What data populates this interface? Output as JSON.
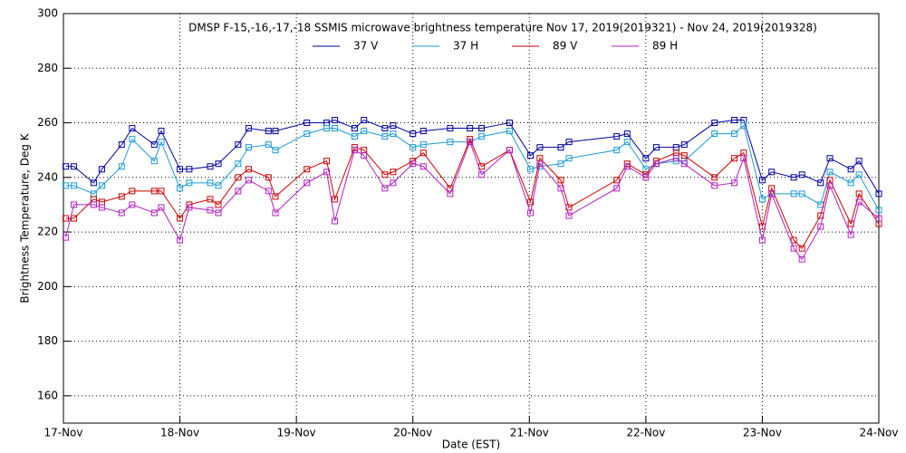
{
  "chart_data": {
    "type": "line",
    "title": "DMSP F-15,-16,-17,-18 SSMIS microwave brightness temperature Nov 17, 2019(2019321) - Nov 24, 2019(2019328)",
    "x_label": "Date (EST)",
    "y_label": "Brightness Temperature, Deg K",
    "x": [
      17.02,
      17.09,
      17.26,
      17.33,
      17.5,
      17.59,
      17.78,
      17.84,
      18.0,
      18.08,
      18.26,
      18.33,
      18.5,
      18.59,
      18.76,
      18.82,
      19.09,
      19.26,
      19.33,
      19.5,
      19.58,
      19.76,
      19.83,
      20.0,
      20.09,
      20.32,
      20.49,
      20.59,
      20.83,
      21.01,
      21.09,
      21.27,
      21.34,
      21.75,
      21.84,
      22.0,
      22.09,
      22.26,
      22.33,
      22.59,
      22.76,
      22.84,
      23.0,
      23.08,
      23.27,
      23.34,
      23.5,
      23.58,
      23.76,
      23.83,
      24.0
    ],
    "series": [
      {
        "name": "37 V",
        "color": "#0000a0",
        "values": [
          244,
          244,
          238,
          243,
          252,
          258,
          252,
          257,
          243,
          243,
          244,
          245,
          252,
          258,
          257,
          257,
          260,
          260,
          261,
          258,
          261,
          258,
          259,
          256,
          257,
          258,
          258,
          258,
          260,
          248,
          251,
          251,
          253,
          255,
          256,
          247,
          251,
          251,
          252,
          260,
          261,
          261,
          239,
          242,
          240,
          241,
          238,
          247,
          243,
          246,
          234
        ]
      },
      {
        "name": "37 H",
        "color": "#1a9bd6",
        "values": [
          237,
          237,
          234,
          237,
          244,
          254,
          246,
          253,
          236,
          238,
          238,
          237,
          245,
          251,
          252,
          250,
          256,
          258,
          258,
          255,
          257,
          255,
          256,
          251,
          252,
          253,
          253,
          255,
          257,
          243,
          244,
          245,
          247,
          250,
          253,
          243,
          245,
          246,
          246,
          256,
          256,
          259,
          232,
          234,
          234,
          234,
          230,
          242,
          238,
          241,
          228
        ]
      },
      {
        "name": "89 V",
        "color": "#cc0000",
        "values": [
          225,
          225,
          232,
          231,
          233,
          235,
          235,
          235,
          225,
          230,
          232,
          230,
          240,
          243,
          240,
          233,
          243,
          246,
          232,
          251,
          250,
          241,
          242,
          246,
          249,
          236,
          254,
          244,
          250,
          231,
          247,
          239,
          229,
          239,
          245,
          241,
          246,
          249,
          248,
          240,
          247,
          249,
          222,
          236,
          217,
          214,
          226,
          239,
          223,
          234,
          223
        ]
      },
      {
        "name": "89 H",
        "color": "#b020c0",
        "values": [
          218,
          230,
          230,
          229,
          227,
          230,
          227,
          229,
          217,
          229,
          228,
          227,
          235,
          239,
          235,
          227,
          238,
          242,
          224,
          250,
          248,
          236,
          238,
          245,
          244,
          234,
          253,
          241,
          250,
          227,
          245,
          236,
          226,
          236,
          244,
          240,
          245,
          247,
          245,
          237,
          238,
          247,
          217,
          234,
          214,
          210,
          222,
          237,
          219,
          231,
          225
        ]
      }
    ],
    "xlim": [
      17,
      24
    ],
    "xticks": [
      {
        "value": 17,
        "label": "17-Nov"
      },
      {
        "value": 18,
        "label": "18-Nov"
      },
      {
        "value": 19,
        "label": "19-Nov"
      },
      {
        "value": 20,
        "label": "20-Nov"
      },
      {
        "value": 21,
        "label": "21-Nov"
      },
      {
        "value": 22,
        "label": "22-Nov"
      },
      {
        "value": 23,
        "label": "23-Nov"
      },
      {
        "value": 24,
        "label": "24-Nov"
      }
    ],
    "ylim": [
      150,
      300
    ],
    "yticks": [
      160,
      180,
      200,
      220,
      240,
      260,
      280,
      300
    ],
    "grid": true
  }
}
